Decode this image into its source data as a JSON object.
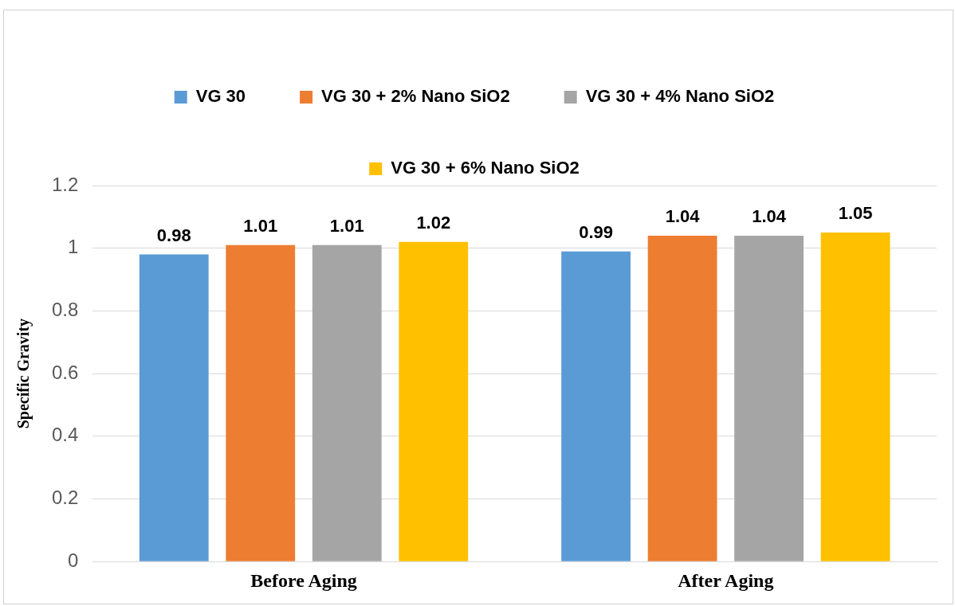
{
  "chart_data": {
    "type": "bar",
    "ylabel": "Specific Gravity",
    "categories": [
      "Before Aging",
      "After Aging"
    ],
    "series": [
      {
        "name": "VG 30",
        "color": "#5b9bd5",
        "values": [
          0.98,
          0.99
        ]
      },
      {
        "name": "VG 30 + 2% Nano SiO2",
        "color": "#ed7d31",
        "values": [
          1.01,
          1.04
        ]
      },
      {
        "name": "VG 30 + 4% Nano SiO2",
        "color": "#a5a5a5",
        "values": [
          1.01,
          1.04
        ]
      },
      {
        "name": "VG 30 + 6% Nano SiO2",
        "color": "#ffc000",
        "values": [
          1.02,
          1.05
        ]
      }
    ],
    "ylim": [
      0,
      1.2
    ],
    "yticks": [
      0,
      0.2,
      0.4,
      0.6,
      0.8,
      1,
      1.2
    ],
    "grid": "y",
    "legend": "top",
    "data_labels": true
  }
}
